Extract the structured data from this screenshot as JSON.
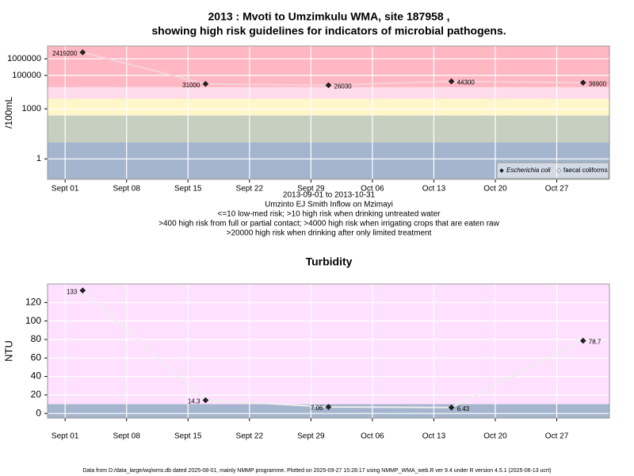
{
  "chart_data": [
    {
      "type": "line",
      "log_y": true,
      "title": [
        "2013 : Mvoti to Umzimkulu WMA, site 187958 ,",
        "showing high risk guidelines for indicators of microbial pathogens."
      ],
      "subtitle": [
        "2013-09-01 to 2013-10-31",
        "Umzinto EJ Smith Inflow on Mzimayi",
        "<=10 low-med risk; >10 high risk when drinking untreated water",
        ">400 high risk from full or partial contact; >4000 high risk when irrigating crops that are eaten raw",
        ">20000 high risk when drinking after only limited treatment"
      ],
      "ylabel": "/100mL",
      "x": [
        "2013-09-03",
        "2013-09-17",
        "2013-10-01",
        "2013-10-15",
        "2013-10-30"
      ],
      "series": [
        {
          "name": "Escherichia coli",
          "color": "#222222",
          "values": [
            2419200,
            31000,
            26030,
            44300,
            36900
          ]
        },
        {
          "name": "faecal coliforms",
          "color": "#ffffff",
          "values": [
            null,
            null,
            null,
            null,
            null
          ]
        }
      ],
      "line_color": "#f6d2da",
      "band_thresholds": [
        10,
        400,
        4000,
        20000
      ],
      "band_colors": [
        "#a4b5cd",
        "#c7cfc0",
        "#fff7c9",
        "#ffdcea",
        "#ffb7c3"
      ],
      "xlim": [
        "2013-08-30",
        "2013-11-02"
      ],
      "xticks": [
        {
          "value": "2013-09-01",
          "label": "Sept 01"
        },
        {
          "value": "2013-09-08",
          "label": "Sept 08"
        },
        {
          "value": "2013-09-15",
          "label": "Sept 15"
        },
        {
          "value": "2013-09-22",
          "label": "Sept 22"
        },
        {
          "value": "2013-09-29",
          "label": "Sept 29"
        },
        {
          "value": "2013-10-06",
          "label": "Oct 06"
        },
        {
          "value": "2013-10-13",
          "label": "Oct 13"
        },
        {
          "value": "2013-10-20",
          "label": "Oct 20"
        },
        {
          "value": "2013-10-27",
          "label": "Oct 27"
        }
      ],
      "ylim": [
        0.06,
        5800000
      ],
      "yticks": [
        1,
        1000,
        100000,
        1000000
      ],
      "grid": true,
      "legend": "lower right"
    },
    {
      "type": "line",
      "log_y": false,
      "title": [
        "Turbidity"
      ],
      "ylabel": "NTU",
      "x": [
        "2013-09-03",
        "2013-09-17",
        "2013-10-01",
        "2013-10-15",
        "2013-10-30"
      ],
      "series": [
        {
          "name": "Turbidity",
          "color": "#222222",
          "values": [
            133,
            14.3,
            7.06,
            6.43,
            78.7
          ]
        }
      ],
      "line_color": "#eeeeee",
      "band_thresholds": [
        10
      ],
      "band_colors": [
        "#a4b5cd",
        "#ffe0ff"
      ],
      "xlim": [
        "2013-08-30",
        "2013-11-02"
      ],
      "xticks": [
        {
          "value": "2013-09-01",
          "label": "Sept 01"
        },
        {
          "value": "2013-09-08",
          "label": "Sept 08"
        },
        {
          "value": "2013-09-15",
          "label": "Sept 15"
        },
        {
          "value": "2013-09-22",
          "label": "Sept 22"
        },
        {
          "value": "2013-09-29",
          "label": "Sept 29"
        },
        {
          "value": "2013-10-06",
          "label": "Oct 06"
        },
        {
          "value": "2013-10-13",
          "label": "Oct 13"
        },
        {
          "value": "2013-10-20",
          "label": "Oct 20"
        },
        {
          "value": "2013-10-27",
          "label": "Oct 27"
        }
      ],
      "ylim": [
        -5,
        140
      ],
      "yticks": [
        0,
        20,
        40,
        60,
        80,
        100,
        120
      ],
      "grid": true
    }
  ],
  "footer": "Data from D:/data_large/wq/wms.db dated 2025-08-01, mainly NMMP programme. Plotted on 2025-09-27 15:28:17 using NMMP_WMA_web.R ver 9.4 under R version 4.5.1 (2025-06-13 ucrt)"
}
